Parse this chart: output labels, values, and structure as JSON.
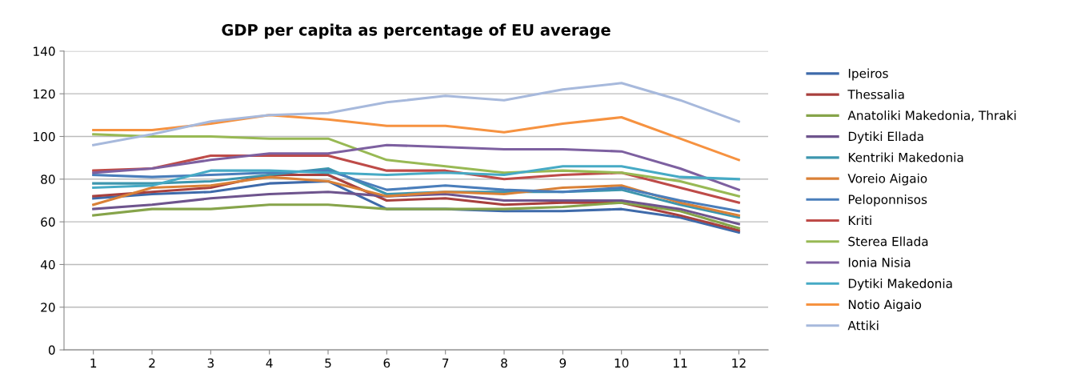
{
  "chart_data": {
    "type": "line",
    "title": "GDP per capita as percentage of EU average",
    "categories": [
      "1",
      "2",
      "3",
      "4",
      "5",
      "6",
      "7",
      "8",
      "9",
      "10",
      "11",
      "12"
    ],
    "ylim": [
      0,
      140
    ],
    "yticks": [
      0,
      20,
      40,
      60,
      80,
      100,
      120,
      140
    ],
    "grid": "y",
    "legend": "right",
    "marker": "none",
    "line_style": "solid",
    "series": [
      {
        "name": "Ipeiros",
        "color": "#3e6aaa",
        "values": [
          71,
          73,
          74,
          78,
          79,
          66,
          66,
          65,
          65,
          66,
          62,
          55
        ]
      },
      {
        "name": "Thessalia",
        "color": "#a8403e",
        "values": [
          72,
          74,
          76,
          82,
          82,
          70,
          71,
          68,
          69,
          69,
          63,
          56
        ]
      },
      {
        "name": "Anatoliki Makedonia, Thraki",
        "color": "#86a44a",
        "values": [
          63,
          66,
          66,
          68,
          68,
          66,
          66,
          66,
          67,
          69,
          65,
          57
        ]
      },
      {
        "name": "Dytiki Ellada",
        "color": "#6e548d",
        "values": [
          66,
          68,
          71,
          73,
          74,
          72,
          73,
          70,
          70,
          70,
          66,
          59
        ]
      },
      {
        "name": "Kentriki Makedonia",
        "color": "#3d96ae",
        "values": [
          78,
          78,
          79,
          82,
          85,
          73,
          74,
          74,
          74,
          75,
          68,
          62
        ]
      },
      {
        "name": "Voreio Aigaio",
        "color": "#da8137",
        "values": [
          68,
          76,
          77,
          81,
          79,
          72,
          74,
          73,
          76,
          77,
          69,
          63
        ]
      },
      {
        "name": "Peloponnisos",
        "color": "#4a7ebb",
        "values": [
          82,
          81,
          82,
          83,
          84,
          75,
          77,
          75,
          74,
          76,
          70,
          65
        ]
      },
      {
        "name": "Kriti",
        "color": "#be4b48",
        "values": [
          84,
          85,
          91,
          91,
          91,
          84,
          84,
          80,
          82,
          83,
          76,
          69
        ]
      },
      {
        "name": "Sterea Ellada",
        "color": "#98b954",
        "values": [
          101,
          100,
          100,
          99,
          99,
          89,
          86,
          83,
          84,
          83,
          79,
          72
        ]
      },
      {
        "name": "Ionia Nisia",
        "color": "#7d60a0",
        "values": [
          83,
          85,
          89,
          92,
          92,
          96,
          95,
          94,
          94,
          93,
          85,
          75
        ]
      },
      {
        "name": "Dytiki Makedonia",
        "color": "#46aac5",
        "values": [
          76,
          77,
          84,
          84,
          83,
          82,
          83,
          82,
          86,
          86,
          81,
          80
        ]
      },
      {
        "name": "Notio Aigaio",
        "color": "#f69240",
        "values": [
          103,
          103,
          106,
          110,
          108,
          105,
          105,
          102,
          106,
          109,
          99,
          89
        ]
      },
      {
        "name": "Attiki",
        "color": "#a7b9dc",
        "values": [
          96,
          101,
          107,
          110,
          111,
          116,
          119,
          117,
          122,
          125,
          117,
          107
        ]
      }
    ]
  }
}
